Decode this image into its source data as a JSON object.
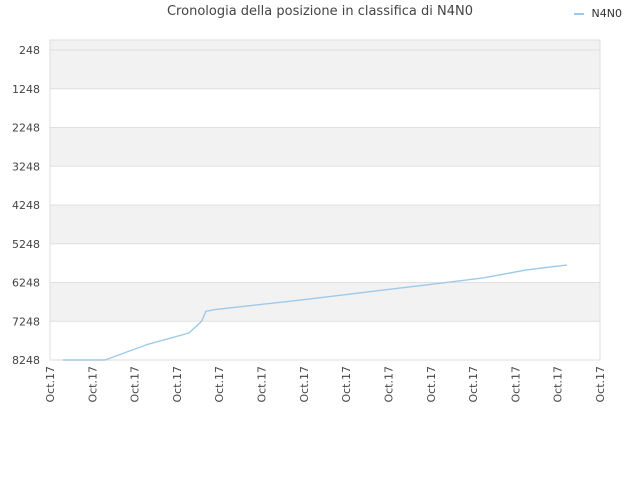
{
  "chart_data": {
    "type": "line",
    "title": "Cronologia della posizione in classifica di N4N0",
    "xlabel": "",
    "ylabel": "",
    "y_inverted": true,
    "ylim": [
      8248,
      248
    ],
    "y_ticks": [
      "248",
      "1248",
      "2248",
      "3248",
      "4248",
      "5248",
      "6248",
      "7248",
      "8248"
    ],
    "x_ticks": [
      "Oct.17",
      "Oct.17",
      "Oct.17",
      "Oct.17",
      "Oct.17",
      "Oct.17",
      "Oct.17",
      "Oct.17",
      "Oct.17",
      "Oct.17",
      "Oct.17",
      "Oct.17",
      "Oct.17",
      "Oct.17"
    ],
    "grid": true,
    "legend_position": "top-right",
    "colors": {
      "line": "#9ecae9",
      "band": "#f2f2f2",
      "grid": "#e0e0e0"
    },
    "series": [
      {
        "name": "N4N0",
        "points": [
          {
            "x": 0.0,
            "y": 8248
          },
          {
            "x": 1.0,
            "y": 8248
          },
          {
            "x": 2.0,
            "y": 7850
          },
          {
            "x": 3.0,
            "y": 7550
          },
          {
            "x": 3.3,
            "y": 7250
          },
          {
            "x": 3.4,
            "y": 6992
          },
          {
            "x": 3.6,
            "y": 6950
          },
          {
            "x": 4.5,
            "y": 6840
          },
          {
            "x": 5.5,
            "y": 6720
          },
          {
            "x": 6.5,
            "y": 6590
          },
          {
            "x": 7.5,
            "y": 6460
          },
          {
            "x": 8.5,
            "y": 6330
          },
          {
            "x": 9.5,
            "y": 6200
          },
          {
            "x": 10.0,
            "y": 6130
          },
          {
            "x": 10.5,
            "y": 6030
          },
          {
            "x": 11.0,
            "y": 5930
          },
          {
            "x": 11.5,
            "y": 5860
          },
          {
            "x": 12.0,
            "y": 5800
          }
        ]
      }
    ]
  }
}
